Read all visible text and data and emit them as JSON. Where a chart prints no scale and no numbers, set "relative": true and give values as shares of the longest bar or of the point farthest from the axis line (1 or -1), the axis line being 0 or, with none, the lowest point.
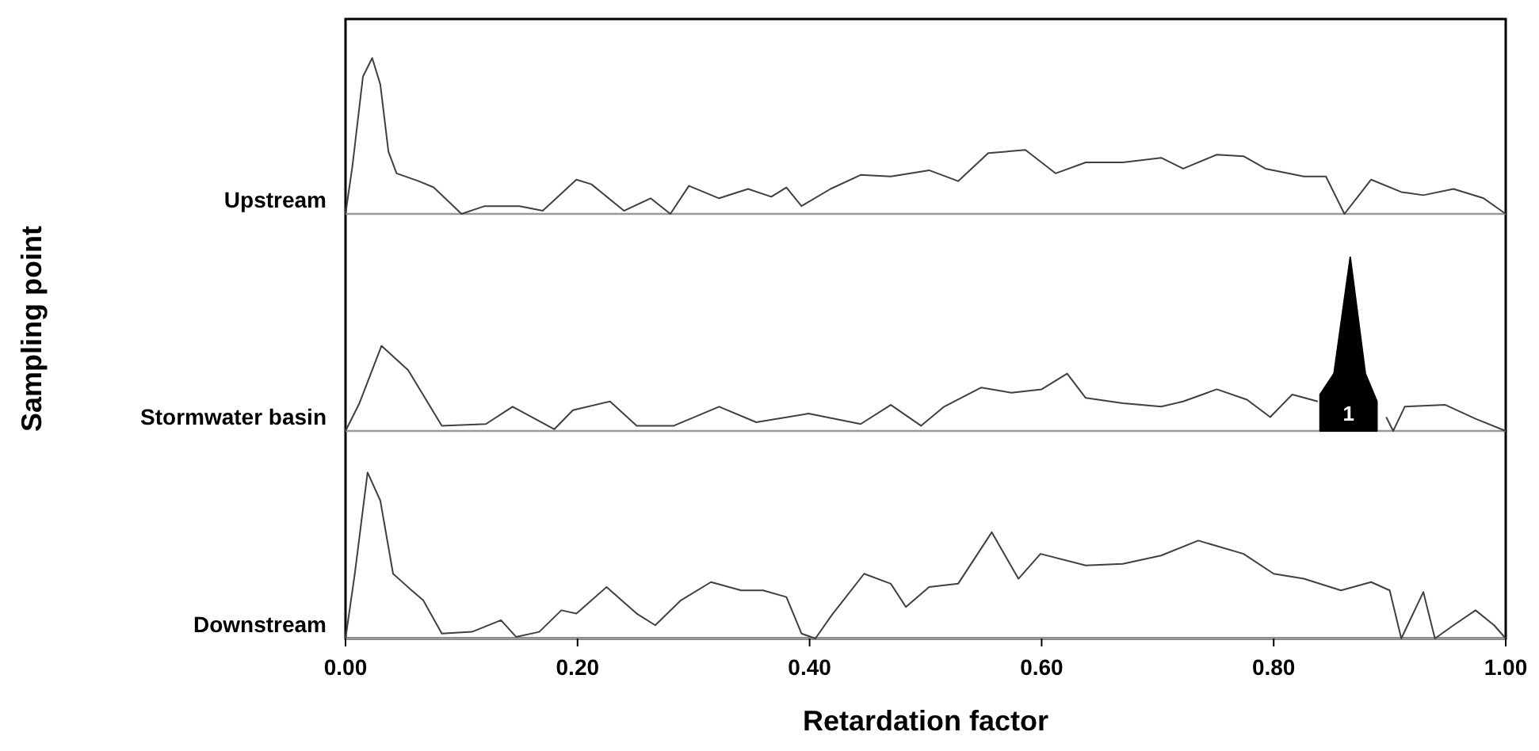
{
  "chart_data": [
    {
      "type": "line",
      "relative": true,
      "tick_labels": false,
      "xlim": [
        0,
        1
      ],
      "series": [
        {
          "name": "Upstream",
          "color": "#404040",
          "x": [
            0,
            0.006,
            0.015,
            0.023,
            0.03,
            0.037,
            0.044,
            0.063,
            0.076,
            0.1,
            0.12,
            0.15,
            0.17,
            0.199,
            0.212,
            0.24,
            0.263,
            0.28,
            0.296,
            0.322,
            0.347,
            0.367,
            0.38,
            0.393,
            0.418,
            0.444,
            0.47,
            0.503,
            0.528,
            0.554,
            0.586,
            0.612,
            0.638,
            0.67,
            0.703,
            0.722,
            0.751,
            0.774,
            0.793,
            0.826,
            0.845,
            0.861,
            0.884,
            0.91,
            0.929,
            0.955,
            0.981,
            1
          ],
          "values": [
            0,
            0.31,
            0.88,
            1,
            0.83,
            0.4,
            0.26,
            0.21,
            0.17,
            0,
            0.05,
            0.05,
            0.02,
            0.22,
            0.19,
            0.02,
            0.1,
            0,
            0.18,
            0.1,
            0.16,
            0.11,
            0.17,
            0.05,
            0.16,
            0.25,
            0.24,
            0.28,
            0.21,
            0.39,
            0.41,
            0.26,
            0.33,
            0.33,
            0.36,
            0.29,
            0.38,
            0.37,
            0.29,
            0.24,
            0.24,
            0,
            0.22,
            0.14,
            0.12,
            0.16,
            0.1,
            0
          ]
        }
      ]
    },
    {
      "type": "line",
      "relative": true,
      "tick_labels": false,
      "xlim": [
        0,
        1
      ],
      "annotations": [
        "1"
      ],
      "series": [
        {
          "name": "Stormwater basin",
          "color": "#404040",
          "x": [
            0,
            0.012,
            0.031,
            0.054,
            0.083,
            0.121,
            0.144,
            0.18,
            0.196,
            0.228,
            0.251,
            0.283,
            0.322,
            0.354,
            0.399,
            0.444,
            0.47,
            0.496,
            0.516,
            0.548,
            0.574,
            0.6,
            0.622,
            0.638,
            0.67,
            0.703,
            0.722,
            0.751,
            0.777,
            0.797,
            0.816,
            0.838,
            0.866,
            0.897,
            0.903,
            0.913,
            0.948,
            0.974,
            1
          ],
          "values": [
            0,
            0.16,
            0.49,
            0.35,
            0.03,
            0.04,
            0.14,
            0.01,
            0.12,
            0.17,
            0.03,
            0.03,
            0.14,
            0.05,
            0.1,
            0.04,
            0.15,
            0.03,
            0.14,
            0.25,
            0.22,
            0.24,
            0.33,
            0.19,
            0.16,
            0.14,
            0.17,
            0.24,
            0.18,
            0.08,
            0.21,
            0.17,
            null,
            0.08,
            0,
            0.14,
            0.15,
            0.07,
            0
          ]
        },
        {
          "type": "area",
          "color": "#000000",
          "x": [
            0.84,
            0.84,
            0.852,
            0.866,
            0.879,
            0.889,
            0.889
          ],
          "values": [
            0,
            0.21,
            0.33,
            1,
            0.33,
            0.17,
            0
          ]
        }
      ]
    },
    {
      "type": "line",
      "relative": true,
      "tick_labels": "x",
      "xlim": [
        0,
        1
      ],
      "xticks": [
        {
          "value": 0,
          "label": "0.00"
        },
        {
          "value": 0.2,
          "label": "0.20"
        },
        {
          "value": 0.4,
          "label": "0.40"
        },
        {
          "value": 0.6,
          "label": "0.60"
        },
        {
          "value": 0.8,
          "label": "0.80"
        },
        {
          "value": 1,
          "label": "1.00"
        }
      ],
      "xlabel": "Retardation factor",
      "ylabel": "Sampling point",
      "series": [
        {
          "name": "Downstream",
          "color": "#404040",
          "x": [
            0,
            0.008,
            0.019,
            0.03,
            0.041,
            0.057,
            0.067,
            0.083,
            0.109,
            0.134,
            0.147,
            0.167,
            0.186,
            0.199,
            0.225,
            0.251,
            0.267,
            0.289,
            0.315,
            0.341,
            0.36,
            0.38,
            0.393,
            0.405,
            0.419,
            0.447,
            0.47,
            0.483,
            0.503,
            0.528,
            0.557,
            0.58,
            0.599,
            0.638,
            0.67,
            0.703,
            0.735,
            0.774,
            0.8,
            0.826,
            0.858,
            0.884,
            0.9,
            0.91,
            0.929,
            0.939,
            0.955,
            0.974,
            0.99,
            1
          ],
          "values": [
            0,
            0.39,
            1,
            0.83,
            0.39,
            0.29,
            0.23,
            0.03,
            0.04,
            0.11,
            0.01,
            0.04,
            0.17,
            0.15,
            0.31,
            0.15,
            0.08,
            0.23,
            0.34,
            0.29,
            0.29,
            0.25,
            0.03,
            0,
            0.14,
            0.39,
            0.33,
            0.19,
            0.31,
            0.33,
            0.64,
            0.36,
            0.51,
            0.44,
            0.45,
            0.5,
            0.59,
            0.51,
            0.39,
            0.36,
            0.29,
            0.34,
            0.29,
            0,
            0.28,
            0,
            0.08,
            0.17,
            0.08,
            0
          ]
        }
      ]
    }
  ]
}
